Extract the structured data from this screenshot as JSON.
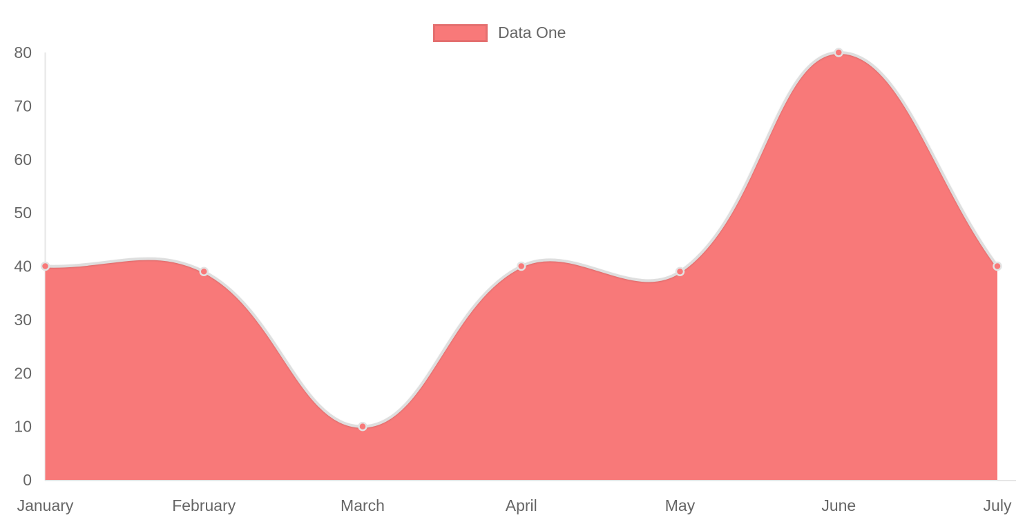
{
  "chart_data": {
    "type": "area",
    "title": "",
    "xlabel": "",
    "ylabel": "",
    "categories": [
      "January",
      "February",
      "March",
      "April",
      "May",
      "June",
      "July"
    ],
    "series": [
      {
        "name": "Data One",
        "values": [
          40,
          39,
          10,
          40,
          39,
          80,
          40
        ]
      }
    ],
    "ylim": [
      0,
      80
    ],
    "yticks": [
      0,
      10,
      20,
      30,
      40,
      50,
      60,
      70,
      80
    ],
    "grid": false,
    "legend_position": "top",
    "line_tension": 0.4
  },
  "legend": {
    "items": [
      {
        "label": "Data One",
        "color": "#f87979"
      }
    ]
  },
  "colors": {
    "series_fill": "#f87979",
    "line_stroke": "#dedede",
    "point_fill": "#f87979",
    "point_border": "#e3e3e3",
    "axis_line": "#e6e6e6",
    "tick_text": "#666666",
    "background": "#ffffff"
  }
}
